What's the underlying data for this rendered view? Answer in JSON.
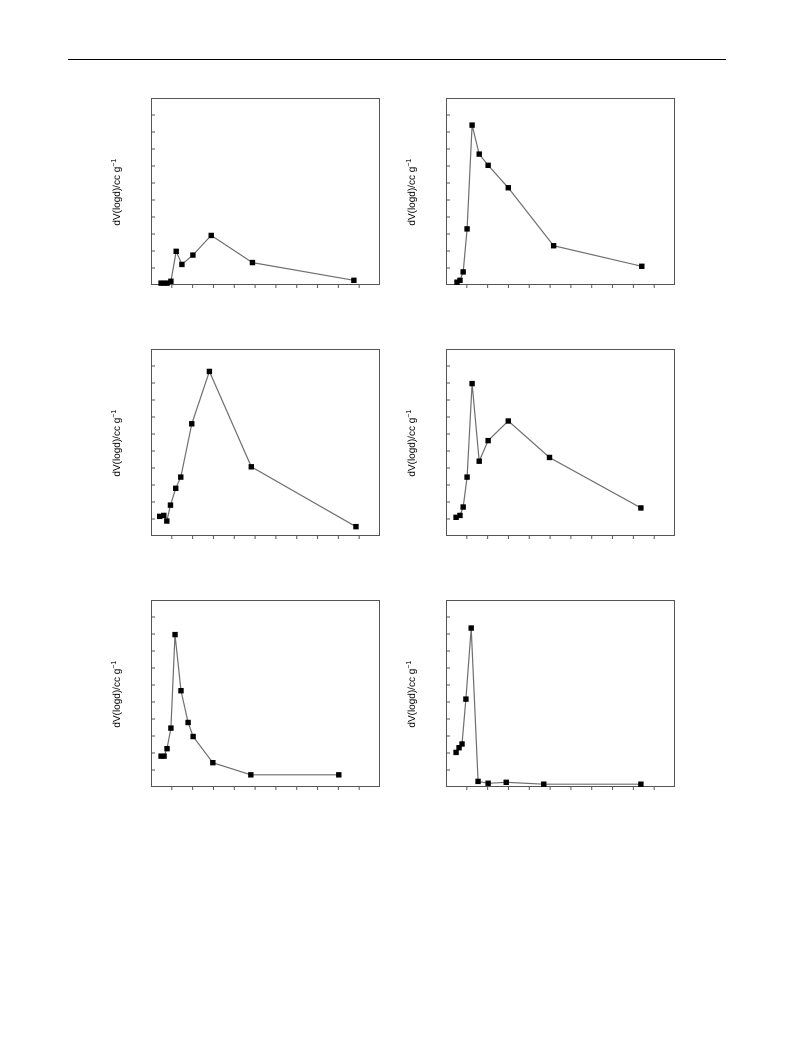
{
  "chart_data": [
    {
      "type": "line",
      "ylabel": "dV(logd)/cc g",
      "ylabel_exponent": "−1",
      "marker": "square",
      "line_color": "#6e6e6e",
      "marker_color": "#000000",
      "xlim": [
        0,
        100
      ],
      "ylim": [
        0,
        100
      ],
      "x": [
        4.4,
        5.7,
        7.0,
        8.7,
        11.0,
        13.5,
        18.3,
        26.3,
        44.3,
        88.6
      ],
      "y": [
        1.0,
        1.0,
        1.0,
        2.0,
        18.0,
        11.0,
        16.0,
        26.5,
        12.0,
        2.5
      ]
    },
    {
      "type": "line",
      "ylabel": "dV(logd)/cc g",
      "ylabel_exponent": "−1",
      "marker": "square",
      "line_color": "#6e6e6e",
      "marker_color": "#000000",
      "xlim": [
        0,
        100
      ],
      "ylim": [
        0,
        100
      ],
      "x": [
        4.8,
        6.1,
        7.5,
        9.2,
        11.4,
        14.5,
        18.4,
        27.2,
        47.0,
        85.5
      ],
      "y": [
        1.5,
        2.5,
        7.0,
        30.0,
        85.5,
        70.0,
        64.0,
        52.0,
        21.0,
        10.0
      ]
    },
    {
      "type": "line",
      "ylabel": "dV(logd)/cc g",
      "ylabel_exponent": "−1",
      "marker": "square",
      "line_color": "#6e6e6e",
      "marker_color": "#000000",
      "xlim": [
        0,
        100
      ],
      "ylim": [
        0,
        100
      ],
      "x": [
        3.8,
        5.6,
        6.9,
        8.5,
        10.8,
        13.0,
        17.8,
        25.5,
        43.8,
        89.5
      ],
      "y": [
        10.5,
        11.0,
        8.0,
        16.5,
        25.5,
        31.5,
        60.0,
        88.0,
        37.0,
        5.0
      ]
    },
    {
      "type": "line",
      "ylabel": "dV(logd)/cc g",
      "ylabel_exponent": "−1",
      "marker": "square",
      "line_color": "#6e6e6e",
      "marker_color": "#000000",
      "xlim": [
        0,
        100
      ],
      "ylim": [
        0,
        100
      ],
      "x": [
        4.4,
        6.1,
        7.5,
        9.2,
        11.4,
        14.5,
        18.4,
        27.2,
        45.2,
        85.1
      ],
      "y": [
        10.0,
        11.0,
        15.5,
        31.5,
        81.5,
        40.0,
        51.0,
        61.5,
        42.0,
        15.0
      ]
    },
    {
      "type": "line",
      "ylabel": "dV(logd)/cc g",
      "ylabel_exponent": "−1",
      "marker": "square",
      "line_color": "#6e6e6e",
      "marker_color": "#000000",
      "xlim": [
        0,
        100
      ],
      "ylim": [
        0,
        100
      ],
      "x": [
        4.4,
        5.7,
        7.0,
        8.7,
        10.5,
        13.1,
        16.2,
        18.4,
        27.0,
        43.6,
        82.0
      ],
      "y": [
        16.5,
        16.5,
        20.5,
        31.5,
        81.5,
        51.5,
        34.5,
        27.0,
        13.0,
        6.5,
        6.5
      ]
    },
    {
      "type": "line",
      "ylabel": "dV(logd)/cc g",
      "ylabel_exponent": "−1",
      "marker": "square",
      "line_color": "#6e6e6e",
      "marker_color": "#000000",
      "xlim": [
        0,
        100
      ],
      "ylim": [
        0,
        100
      ],
      "x": [
        4.4,
        5.7,
        7.0,
        8.7,
        11.0,
        14.0,
        18.4,
        26.3,
        42.7,
        85.1
      ],
      "y": [
        18.5,
        21.0,
        23.0,
        47.0,
        85.0,
        3.0,
        2.0,
        2.5,
        1.5,
        1.5
      ]
    }
  ]
}
